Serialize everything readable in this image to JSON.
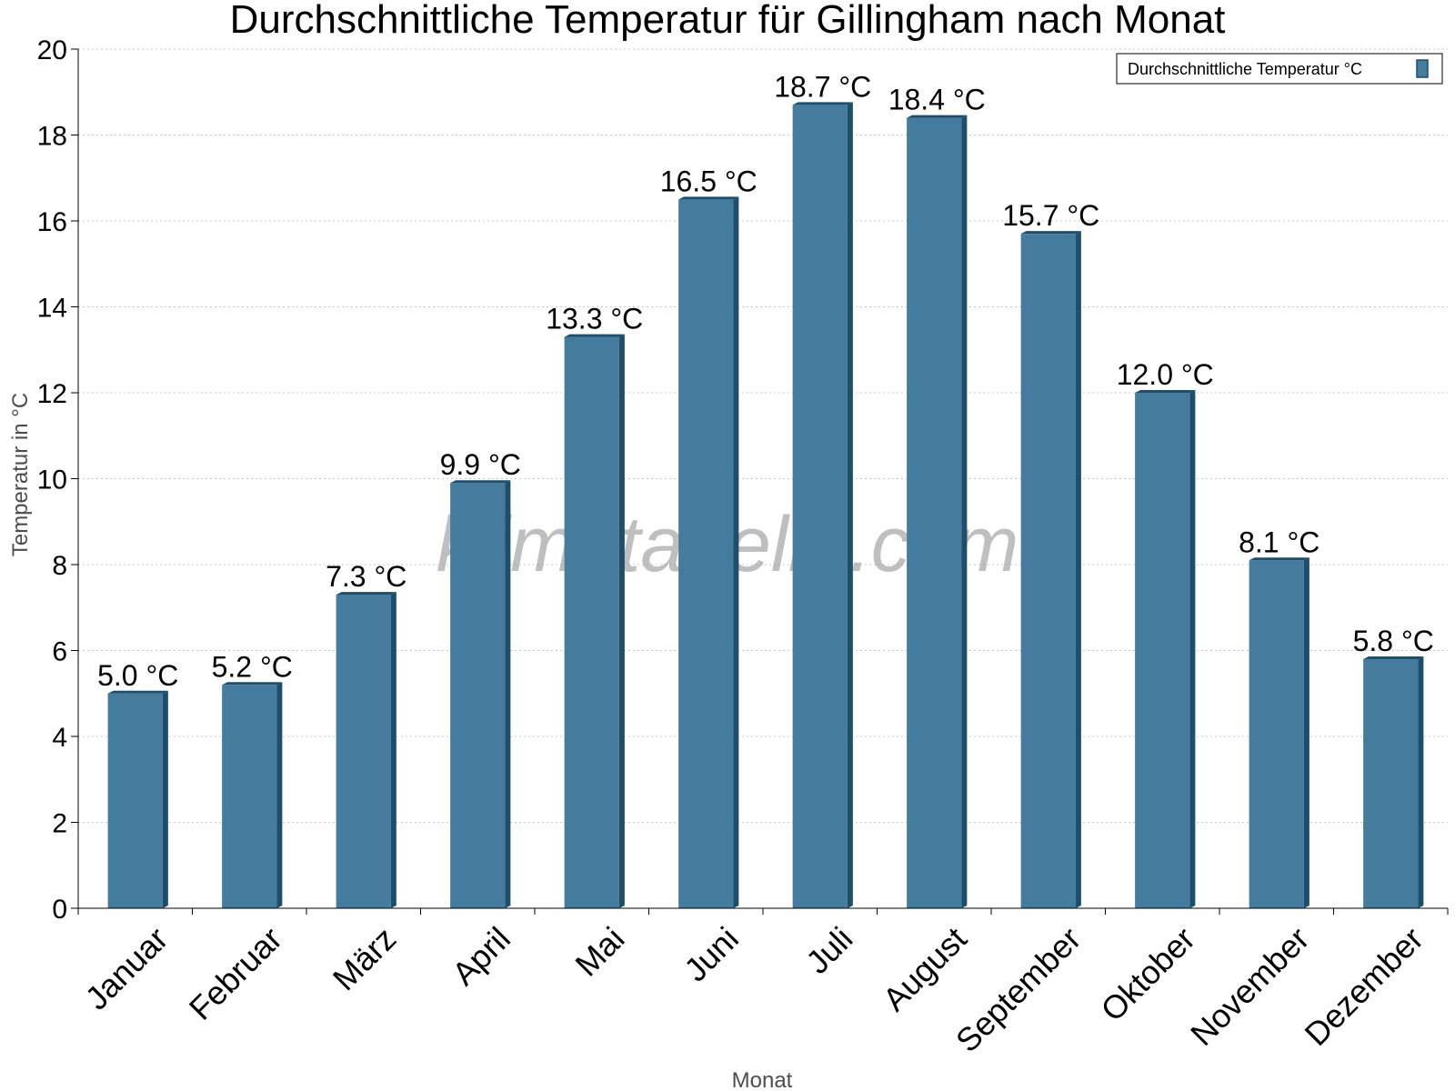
{
  "chart_data": {
    "type": "bar",
    "title": "Durchschnittliche Temperatur für Gillingham nach Monat",
    "xlabel": "Monat",
    "ylabel": "Temperatur in °C",
    "categories": [
      "Januar",
      "Februar",
      "März",
      "April",
      "Mai",
      "Juni",
      "Juli",
      "August",
      "September",
      "Oktober",
      "November",
      "Dezember"
    ],
    "series": [
      {
        "name": "Durchschnittliche Temperatur °C",
        "values": [
          5.0,
          5.2,
          7.3,
          9.9,
          13.3,
          16.5,
          18.7,
          18.4,
          15.7,
          12.0,
          8.1,
          5.8
        ],
        "data_labels": [
          "5.0 °C",
          "5.2 °C",
          "7.3 °C",
          "9.9 °C",
          "13.3 °C",
          "16.5 °C",
          "18.7 °C",
          "18.4 °C",
          "15.7 °C",
          "12.0 °C",
          "8.1 °C",
          "5.8 °C"
        ],
        "color": "#457b9d",
        "edge_color": "#1d4e6b"
      }
    ],
    "ylim": [
      0,
      20
    ],
    "yticks": [
      0,
      2,
      4,
      6,
      8,
      10,
      12,
      14,
      16,
      18,
      20
    ],
    "grid": true,
    "legend": "top-right",
    "watermark": "klimatabelle.com"
  }
}
